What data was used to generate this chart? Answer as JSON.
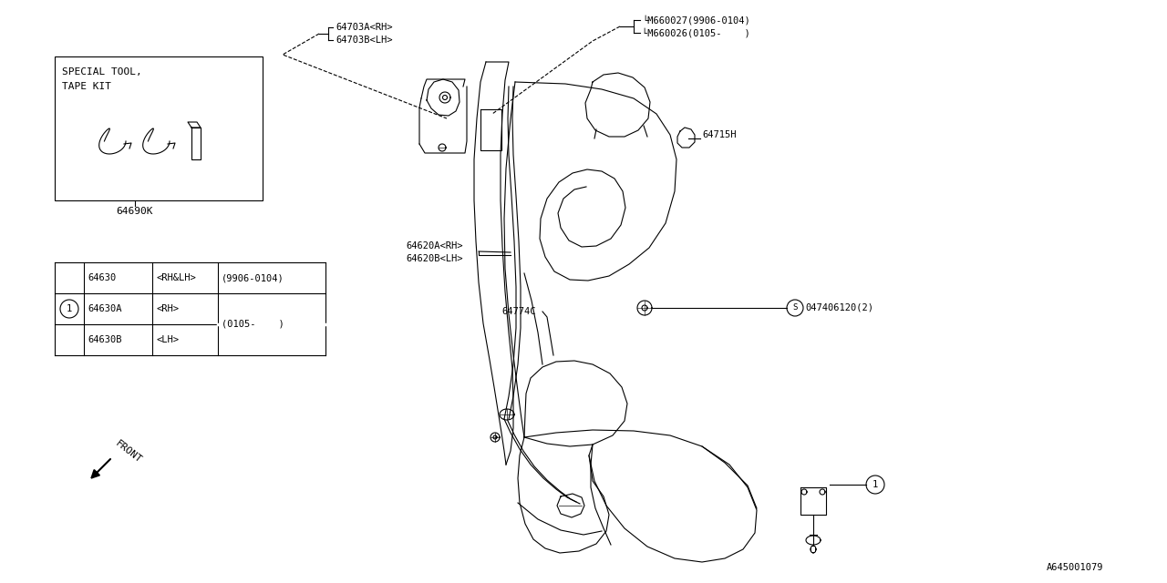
{
  "bg_color": "#ffffff",
  "line_color": "#000000",
  "diagram_id": "A645001079",
  "font_family": "monospace",
  "lw": 0.8,
  "labels": {
    "64703A_RH": "64703A<RH>",
    "64703B_LH": "64703B<LH>",
    "M660027": "└M660027(9906-0104)",
    "M660026": "└M660026(0105-    )",
    "64715H": "64715H",
    "64690K": "64690K",
    "64620A_RH": "64620A<RH>",
    "64620B_LH": "64620B<LH>",
    "64774C": "64774C",
    "047406120": "047406120(2)",
    "special_tool_line1": "SPECIAL TOOL,",
    "special_tool_line2": "TAPE KIT",
    "front": "FRONT"
  },
  "table_rows": [
    [
      "",
      "64630",
      "<RH&LH>",
      "(9906-0104)"
    ],
    [
      "1",
      "64630A",
      "<RH>",
      "(0105-    )"
    ],
    [
      "",
      "64630B",
      "<LH>",
      ""
    ]
  ]
}
